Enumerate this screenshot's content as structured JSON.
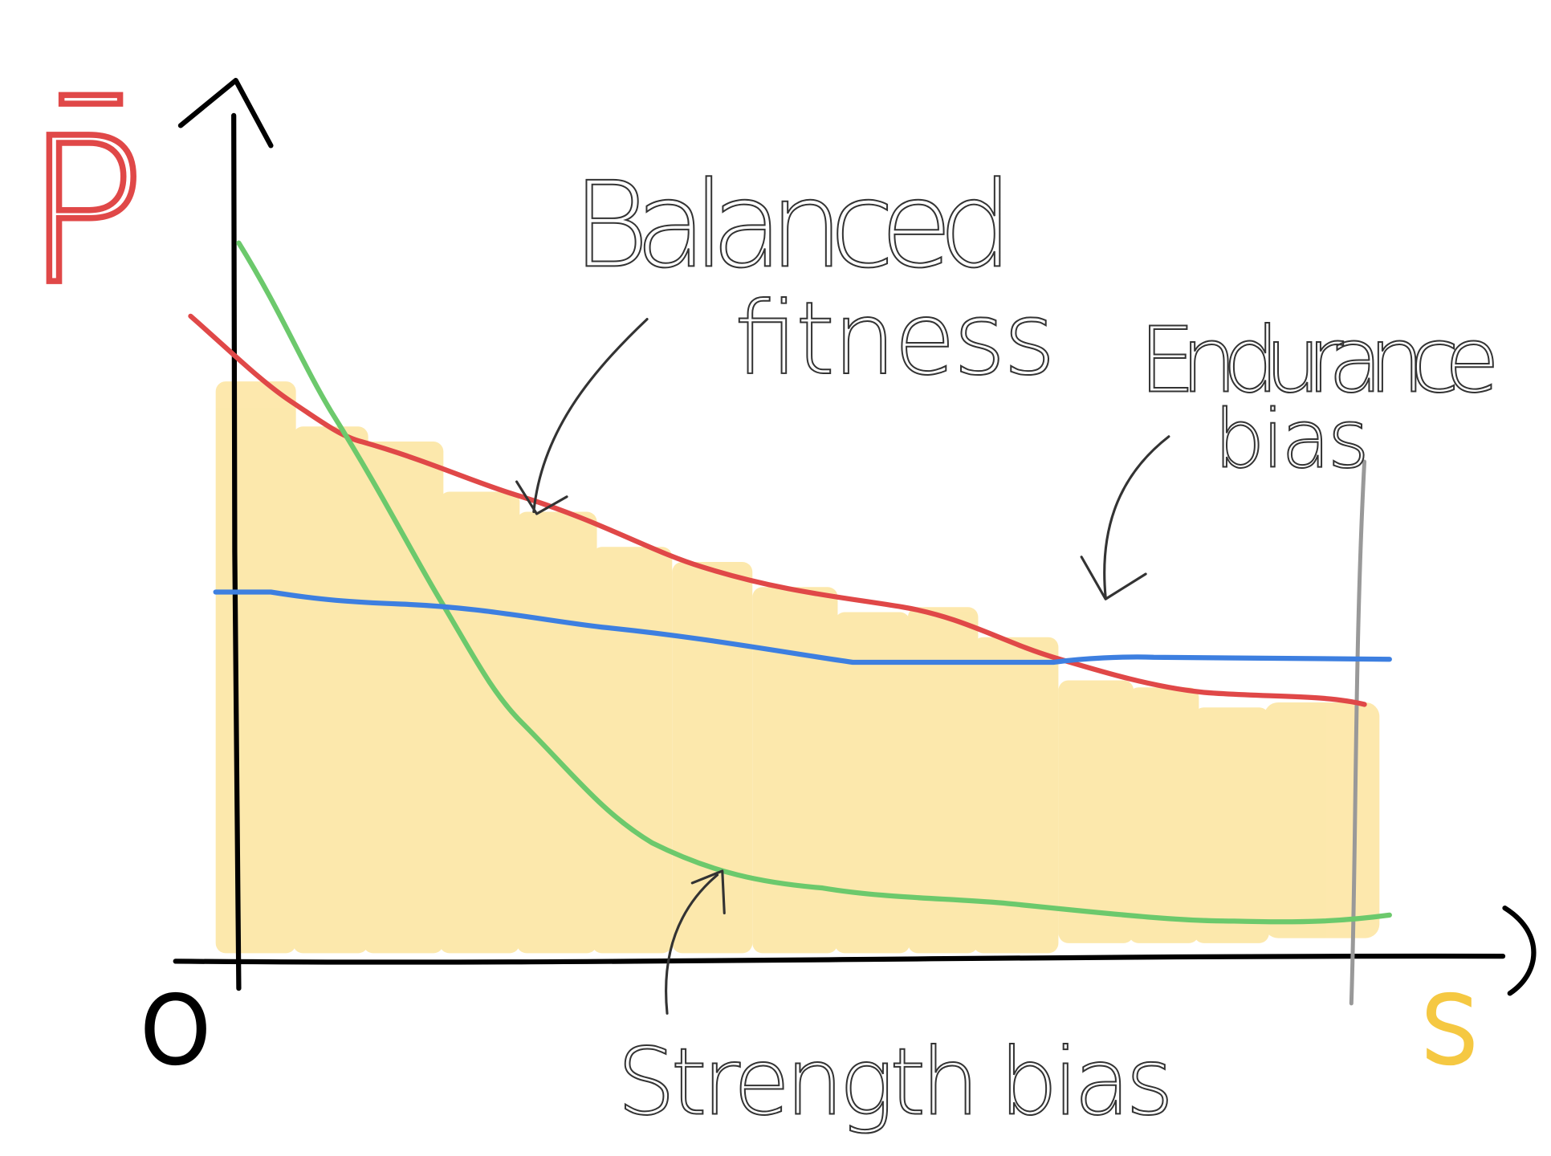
{
  "axes": {
    "y_label": "P̄",
    "x_label": "S",
    "origin": "O"
  },
  "annotations": [
    {
      "lines": [
        "Balanced",
        "fitness"
      ]
    },
    {
      "lines": [
        "Endurance",
        "bias"
      ]
    },
    {
      "lines": [
        "Strength bias"
      ]
    }
  ]
}
